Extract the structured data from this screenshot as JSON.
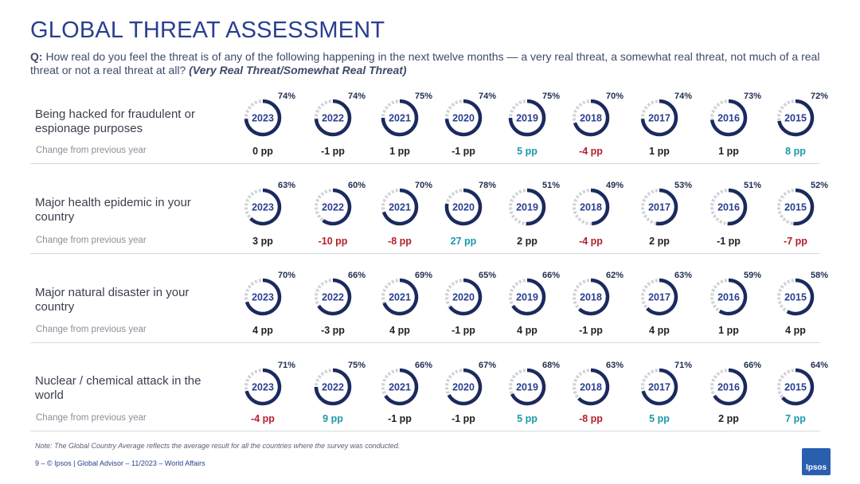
{
  "page": {
    "title": "GLOBAL THREAT ASSESSMENT",
    "question_prefix": "Q:",
    "question": "How real do you feel the threat is of any of the following happening in the next twelve months — a very real threat, a somewhat real threat, not much of a real threat or not a real threat at all?",
    "question_emphasis": "(Very Real Threat/Somewhat Real Threat)",
    "change_label": "Change from previous year",
    "footnote": "Note: The Global Country Average reflects the average result for all the countries where the survey was conducted.",
    "footer": "9 – © Ipsos | Global Advisor – 11/2023 – World Affairs",
    "logo_text": "Ipsos"
  },
  "colors": {
    "ring_fill": "#1b2a5e",
    "ring_track": "#d0d3d8",
    "year_text": "#2a3f8f",
    "positive": "#1a9aa8",
    "negative": "#b3202c",
    "neutral": "#222222"
  },
  "chart_data": {
    "type": "donut-grid",
    "years": [
      "2023",
      "2022",
      "2021",
      "2020",
      "2019",
      "2018",
      "2017",
      "2016",
      "2015"
    ],
    "rows": [
      {
        "label": "Being hacked for fraudulent or espionage purposes",
        "values": [
          74,
          74,
          75,
          74,
          75,
          70,
          74,
          73,
          72
        ],
        "value_labels": [
          "74%",
          "74%",
          "75%",
          "74%",
          "75%",
          "70%",
          "74%",
          "73%",
          "72%"
        ],
        "changes": [
          0,
          -1,
          1,
          -1,
          5,
          -4,
          1,
          1,
          8
        ],
        "change_labels": [
          "0 pp",
          "-1 pp",
          "1 pp",
          "-1 pp",
          "5 pp",
          "-4 pp",
          "1 pp",
          "1 pp",
          "8 pp"
        ]
      },
      {
        "label": "Major health epidemic in your country",
        "values": [
          63,
          60,
          70,
          78,
          51,
          49,
          53,
          51,
          52
        ],
        "value_labels": [
          "63%",
          "60%",
          "70%",
          "78%",
          "51%",
          "49%",
          "53%",
          "51%",
          "52%"
        ],
        "changes": [
          3,
          -10,
          -8,
          27,
          2,
          -4,
          2,
          -1,
          -7
        ],
        "change_labels": [
          "3 pp",
          "-10 pp",
          "-8 pp",
          "27 pp",
          "2 pp",
          "-4 pp",
          "2 pp",
          "-1 pp",
          "-7 pp"
        ]
      },
      {
        "label": "Major natural disaster in your country",
        "values": [
          70,
          66,
          69,
          65,
          66,
          62,
          63,
          59,
          58
        ],
        "value_labels": [
          "70%",
          "66%",
          "69%",
          "65%",
          "66%",
          "62%",
          "63%",
          "59%",
          "58%"
        ],
        "changes": [
          4,
          -3,
          4,
          -1,
          4,
          -1,
          4,
          1,
          4
        ],
        "change_labels": [
          "4 pp",
          "-3 pp",
          "4 pp",
          "-1 pp",
          "4 pp",
          "-1 pp",
          "4 pp",
          "1 pp",
          "4 pp"
        ]
      },
      {
        "label": "Nuclear / chemical attack in the world",
        "values": [
          71,
          75,
          66,
          67,
          68,
          63,
          71,
          66,
          64
        ],
        "value_labels": [
          "71%",
          "75%",
          "66%",
          "67%",
          "68%",
          "63%",
          "71%",
          "66%",
          "64%"
        ],
        "changes": [
          -4,
          9,
          -1,
          -1,
          5,
          -8,
          5,
          2,
          7
        ],
        "change_labels": [
          "-4 pp",
          "9 pp",
          "-1 pp",
          "-1 pp",
          "5 pp",
          "-8 pp",
          "5 pp",
          "2 pp",
          "7 pp"
        ]
      }
    ]
  }
}
